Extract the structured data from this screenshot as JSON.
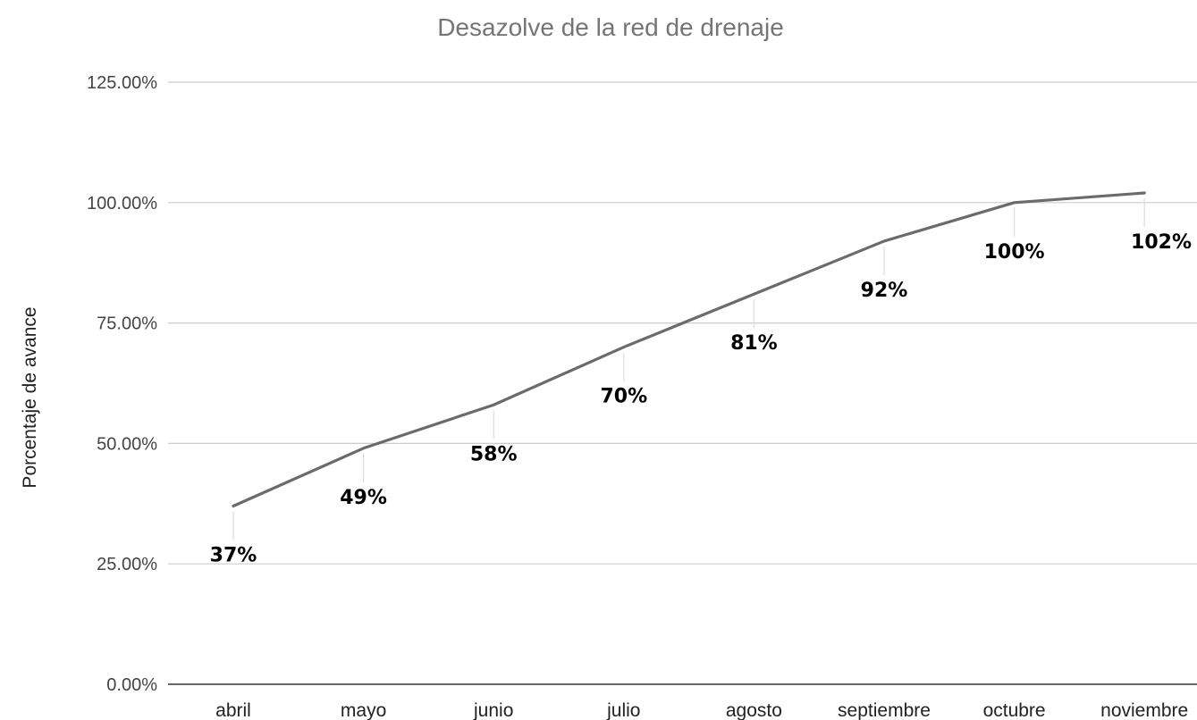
{
  "chart_data": {
    "type": "line",
    "title": "Desazolve de la red de drenaje",
    "ylabel": "Porcentaje de avance",
    "xlabel": "",
    "categories": [
      "abril",
      "mayo",
      "junio",
      "julio",
      "agosto",
      "septiembre",
      "octubre",
      "noviembre"
    ],
    "series": [
      {
        "values": [
          37,
          49,
          58,
          70,
          81,
          92,
          100,
          102
        ],
        "labels": [
          "37%",
          "49%",
          "58%",
          "70%",
          "81%",
          "92%",
          "100%",
          "102%"
        ],
        "color": "#6b6b6b"
      }
    ],
    "ylim": [
      0,
      125
    ],
    "yticks": [
      {
        "value": 0,
        "label": "0.00%"
      },
      {
        "value": 25,
        "label": "25.00%"
      },
      {
        "value": 50,
        "label": "50.00%"
      },
      {
        "value": 75,
        "label": "75.00%"
      },
      {
        "value": 100,
        "label": "100.00%"
      },
      {
        "value": 125,
        "label": "125.00%"
      }
    ],
    "grid": true,
    "legend": "none",
    "data_label_position": "below"
  }
}
